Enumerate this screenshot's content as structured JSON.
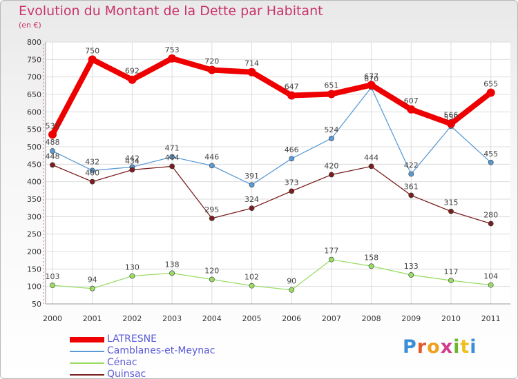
{
  "header": {
    "title": "Evolution du Montant de la Dette par Habitant",
    "subtitle": "(en €)"
  },
  "logo": {
    "text": "Proxiti",
    "colors": [
      "#3b8fd6",
      "#e55a2b",
      "#f0a020",
      "#d23c8c",
      "#6ab830",
      "#f0c020",
      "#3b8fd6"
    ]
  },
  "chart_data": {
    "type": "line",
    "x": [
      "2000",
      "2001",
      "2002",
      "2003",
      "2004",
      "2005",
      "2006",
      "2007",
      "2008",
      "2009",
      "2010",
      "2011"
    ],
    "ylim": [
      50,
      800
    ],
    "yticks": [
      50,
      100,
      150,
      200,
      250,
      300,
      350,
      400,
      450,
      500,
      550,
      600,
      650,
      700,
      750,
      800
    ],
    "grid": true,
    "legend_position": "bottom-left",
    "series": [
      {
        "name": "LATRESNE",
        "color": "#ee0000",
        "values": [
          535,
          750,
          692,
          753,
          720,
          714,
          647,
          651,
          677,
          607,
          566,
          655
        ]
      },
      {
        "name": "Camblanes-et-Meynac",
        "color": "#5b9bd5",
        "values": [
          488,
          432,
          442,
          471,
          446,
          391,
          466,
          524,
          670,
          422,
          559,
          455
        ]
      },
      {
        "name": "Cénac",
        "color": "#99dd66",
        "values": [
          103,
          94,
          130,
          138,
          120,
          102,
          90,
          177,
          158,
          133,
          117,
          104
        ]
      },
      {
        "name": "Quinsac",
        "color": "#7a1f1f",
        "values": [
          448,
          400,
          434,
          444,
          295,
          324,
          373,
          420,
          444,
          361,
          315,
          280
        ]
      }
    ]
  }
}
